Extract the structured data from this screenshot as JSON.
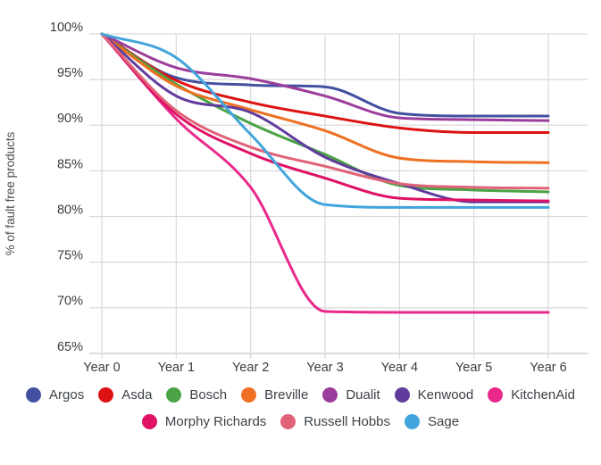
{
  "chart_data": {
    "type": "line",
    "title": "",
    "xlabel": "",
    "ylabel": "% of fault free products",
    "categories": [
      "Year 0",
      "Year 1",
      "Year 2",
      "Year 3",
      "Year 4",
      "Year 5",
      "Year 6"
    ],
    "y_tick_labels": [
      "100%",
      "95%",
      "90%",
      "85%",
      "80%",
      "75%",
      "70%",
      "65%"
    ],
    "ylim": [
      65,
      100
    ],
    "grid": true,
    "legend_position": "bottom",
    "series": [
      {
        "name": "Argos",
        "color": "#4350a0",
        "values": [
          100,
          95.2,
          94.4,
          94.2,
          91.3,
          91.0,
          91.0
        ]
      },
      {
        "name": "Asda",
        "color": "#dd1212",
        "values": [
          100,
          94.9,
          92.5,
          91.0,
          89.7,
          89.2,
          89.2
        ]
      },
      {
        "name": "Bosch",
        "color": "#4aa344",
        "values": [
          100,
          94.5,
          90.2,
          86.8,
          83.4,
          82.9,
          82.7
        ]
      },
      {
        "name": "Breville",
        "color": "#ef7022",
        "values": [
          100,
          94.3,
          91.7,
          89.4,
          86.4,
          86.0,
          85.9
        ]
      },
      {
        "name": "Dualit",
        "color": "#9b3d9b",
        "values": [
          100,
          96.3,
          95.1,
          93.2,
          90.8,
          90.6,
          90.5
        ]
      },
      {
        "name": "Kenwood",
        "color": "#613c9c",
        "values": [
          100,
          93.2,
          91.4,
          86.5,
          83.6,
          81.6,
          81.6
        ]
      },
      {
        "name": "KitchenAid",
        "color": "#e9298a",
        "values": [
          100,
          90.7,
          83.2,
          69.6,
          69.5,
          69.5,
          69.5
        ]
      },
      {
        "name": "Morphy Richards",
        "color": "#de1164",
        "values": [
          100,
          91.2,
          86.9,
          84.2,
          82.0,
          81.8,
          81.7
        ]
      },
      {
        "name": "Russell Hobbs",
        "color": "#e06377",
        "values": [
          100,
          91.6,
          87.6,
          85.5,
          83.6,
          83.2,
          83.1
        ]
      },
      {
        "name": "Sage",
        "color": "#41a5db",
        "values": [
          100,
          97.4,
          89.0,
          81.3,
          81.0,
          81.0,
          81.0
        ]
      }
    ],
    "legend_rows": [
      [
        "Argos",
        "Asda",
        "Bosch",
        "Breville",
        "Dualit",
        "Kenwood",
        "KitchenAid"
      ],
      [
        "Morphy Richards",
        "Russell Hobbs",
        "Sage"
      ]
    ]
  },
  "colors": {
    "background": "#ffffff",
    "gridline": "#d9d9d9",
    "axis_line": "#c6c6c6",
    "tick_text": "#3c3c3c",
    "axis_title_text": "#4d4d4d",
    "legend_text": "#3d4247"
  }
}
